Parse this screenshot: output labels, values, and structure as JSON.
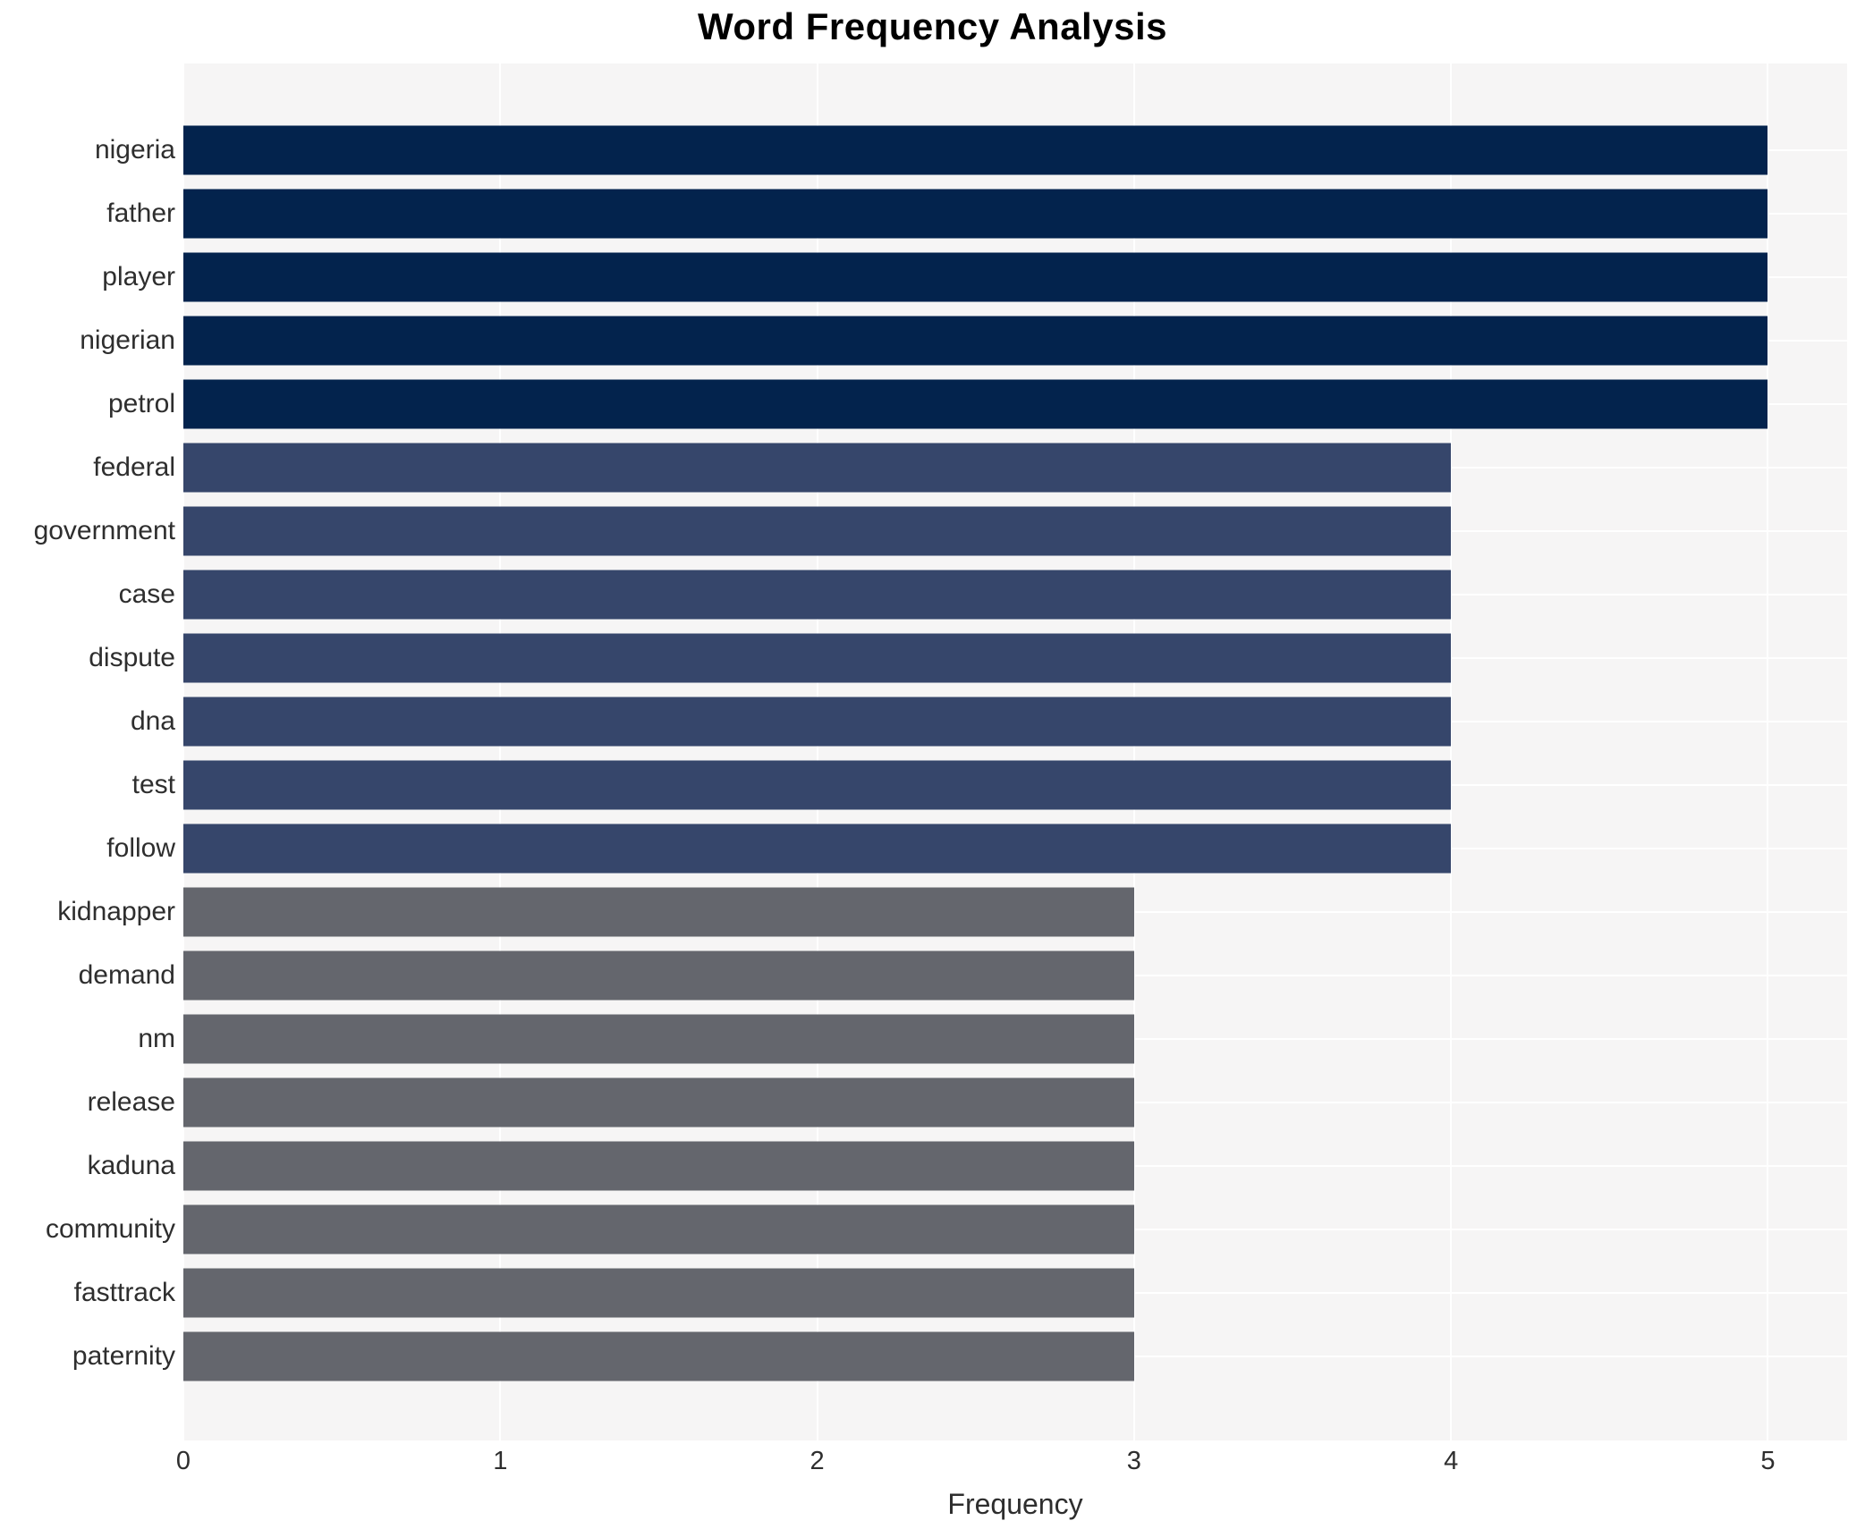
{
  "chart_data": {
    "type": "bar",
    "orientation": "horizontal",
    "title": "Word Frequency Analysis",
    "xlabel": "Frequency",
    "ylabel": "",
    "categories": [
      "nigeria",
      "father",
      "player",
      "nigerian",
      "petrol",
      "federal",
      "government",
      "case",
      "dispute",
      "dna",
      "test",
      "follow",
      "kidnapper",
      "demand",
      "nm",
      "release",
      "kaduna",
      "community",
      "fasttrack",
      "paternity"
    ],
    "values": [
      5,
      5,
      5,
      5,
      5,
      4,
      4,
      4,
      4,
      4,
      4,
      4,
      3,
      3,
      3,
      3,
      3,
      3,
      3,
      3
    ],
    "xticks": [
      0,
      1,
      2,
      3,
      4,
      5
    ],
    "xlim": [
      0,
      5.25
    ],
    "grid": true,
    "legend": "none",
    "colors_by_value": {
      "5": "#03234d",
      "4": "#36466b",
      "3": "#64666d"
    },
    "panel_background": "#f6f5f5",
    "gridline_color": "#ffffff",
    "text_color": "#2e2e2e",
    "title_color": "#000000"
  }
}
